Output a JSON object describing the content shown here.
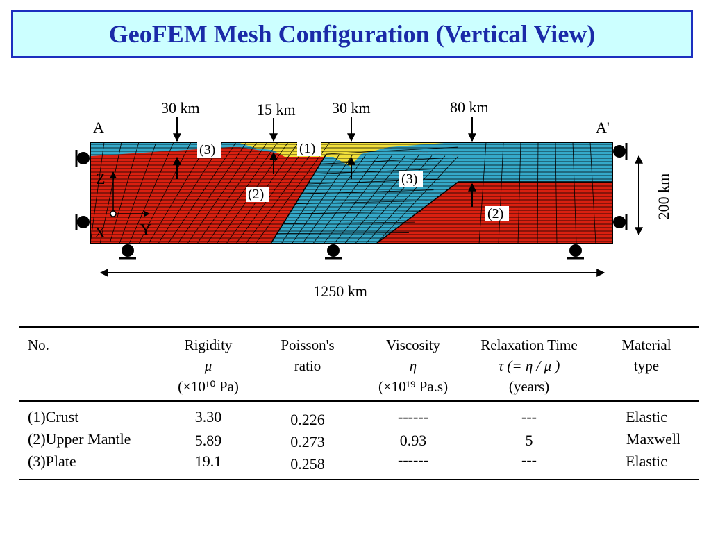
{
  "title": "GeoFEM Mesh Configuration (Vertical View)",
  "diagram": {
    "label_a": "A",
    "label_a_prime": "A'",
    "depth_30km_left": "30 km",
    "depth_15km": "15 km",
    "depth_30km_mid": "30 km",
    "depth_80km": "80 km",
    "height_200km": "200 km",
    "width_1250km": "1250 km",
    "region_tags": {
      "crust": "(1)",
      "plate_left": "(3)",
      "plate_mid": "(3)",
      "mantle_left": "(2)",
      "mantle_right": "(2)"
    },
    "axes": {
      "z": "Z",
      "x": "X",
      "y": "Y"
    },
    "colors": {
      "crust": "#f2e03a",
      "mantle": "#d92010",
      "plate": "#35a9c9"
    }
  },
  "table": {
    "headers": {
      "no": "No.",
      "rigidity": [
        "Rigidity",
        "μ",
        "(×10¹⁰ Pa)"
      ],
      "poisson": [
        "Poisson's",
        "ratio"
      ],
      "viscosity": [
        "Viscosity",
        "η",
        "(×10¹⁹ Pa.s)"
      ],
      "relaxation": [
        "Relaxation Time",
        "τ (= η / μ )",
        "(years)"
      ],
      "material": [
        "Material",
        "type"
      ]
    },
    "rows": [
      {
        "no": "(1)Crust",
        "rigidity": "3.30",
        "poisson": "0.226",
        "viscosity": "------",
        "relaxation": "---",
        "material": "Elastic"
      },
      {
        "no": "(2)Upper Mantle",
        "rigidity": "5.89",
        "poisson": "0.273",
        "viscosity": "0.93",
        "relaxation": "5",
        "material": "Maxwell"
      },
      {
        "no": "(3)Plate",
        "rigidity": "19.1",
        "poisson": "0.258",
        "viscosity": "------",
        "relaxation": "---",
        "material": "Elastic"
      }
    ]
  }
}
